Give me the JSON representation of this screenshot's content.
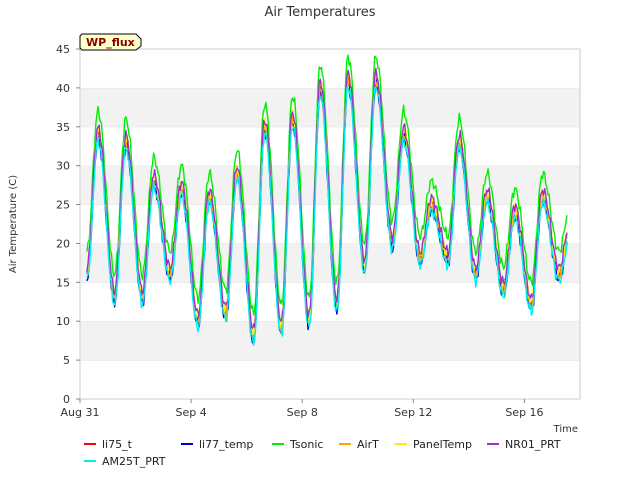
{
  "chart_data": {
    "type": "line",
    "title": "Air Temperatures",
    "xlabel": "Time",
    "ylabel": "Air Temperature (C)",
    "badge": "WP_flux",
    "ylim": [
      0,
      45
    ],
    "yticks": [
      0,
      5,
      10,
      15,
      20,
      25,
      30,
      35,
      40,
      45
    ],
    "xlim_days": [
      0,
      18
    ],
    "xticks": [
      {
        "label": "Aug 31",
        "day": 0
      },
      {
        "label": "Sep 4",
        "day": 4
      },
      {
        "label": "Sep 8",
        "day": 8
      },
      {
        "label": "Sep 12",
        "day": 12
      },
      {
        "label": "Sep 16",
        "day": 16
      }
    ],
    "grid": "horizontal bands",
    "legend_position": "bottom",
    "daily_extremes": {
      "day": [
        0,
        1,
        2,
        3,
        4,
        5,
        6,
        7,
        8,
        9,
        10,
        11,
        12,
        13,
        14,
        15,
        16,
        17
      ],
      "min_c": [
        16,
        13,
        13,
        16,
        10,
        11,
        8,
        9,
        10,
        12,
        17,
        20,
        18,
        18,
        16,
        14,
        12,
        16
      ],
      "max_c": [
        34,
        33,
        28,
        27,
        26,
        29,
        35,
        36,
        40,
        41,
        41,
        34,
        25,
        33,
        26,
        24,
        26,
        22
      ]
    },
    "series": [
      {
        "name": "li75_t",
        "color": "#ff0000",
        "offset": 0.3
      },
      {
        "name": "li77_temp",
        "color": "#0000cc",
        "offset": -0.5
      },
      {
        "name": "Tsonic",
        "color": "#00ee00",
        "offset": 3.0
      },
      {
        "name": "AirT",
        "color": "#ffa500",
        "offset": 0.0
      },
      {
        "name": "PanelTemp",
        "color": "#ffee00",
        "offset": 0.6
      },
      {
        "name": "NR01_PRT",
        "color": "#9932cc",
        "offset": 0.9
      },
      {
        "name": "AM25T_PRT",
        "color": "#00eeee",
        "offset": -0.8
      }
    ]
  }
}
